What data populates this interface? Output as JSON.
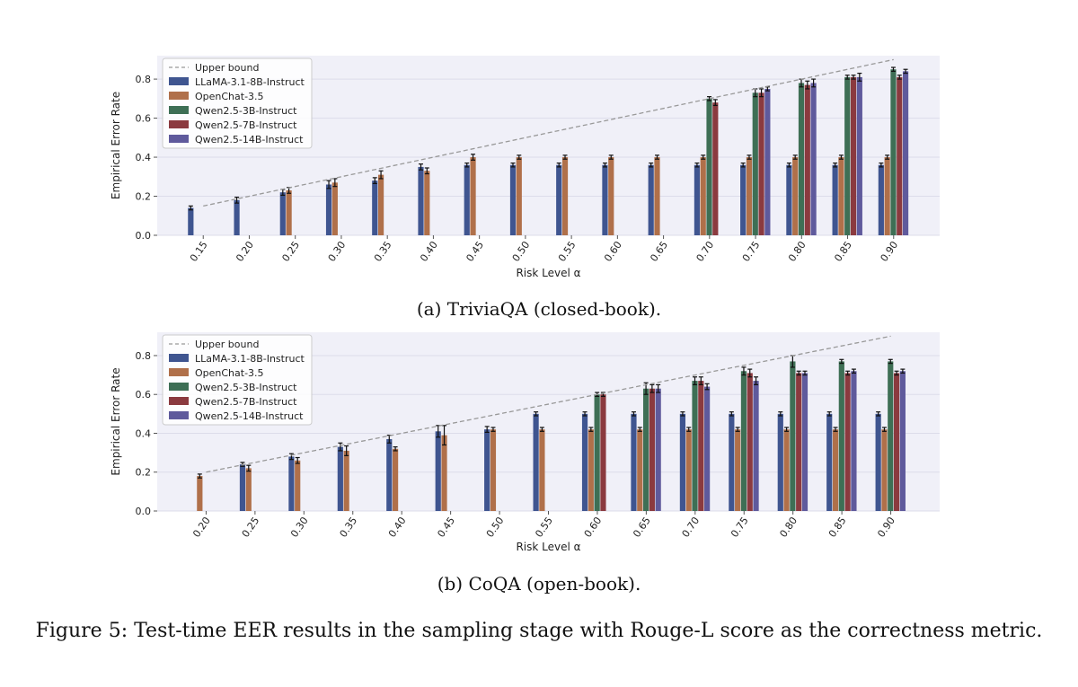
{
  "figure_caption": "Figure 5: Test-time EER results in the sampling stage with Rouge-L score as the correctness metric.",
  "colors": {
    "upper_bound": "#999999",
    "LLaMA-3.1-8B-Instruct": "#3f5590",
    "OpenChat-3.5": "#b0704a",
    "Qwen2.5-3B-Instruct": "#3e6f55",
    "Qwen2.5-7B-Instruct": "#8b3a3f",
    "Qwen2.5-14B-Instruct": "#5f5a9c",
    "plot_bg": "#f0f0f8"
  },
  "chart_data": [
    {
      "id": "a",
      "type": "bar",
      "caption": "(a) TriviaQA (closed-book).",
      "xlabel": "Risk Level α",
      "ylabel": "Empirical Error Rate",
      "ylim": [
        0,
        0.92
      ],
      "yticks": [
        "0.0",
        "0.2",
        "0.4",
        "0.6",
        "0.8"
      ],
      "legend_position": "top-left",
      "grid": true,
      "categories": [
        "0.15",
        "0.20",
        "0.25",
        "0.30",
        "0.35",
        "0.40",
        "0.45",
        "0.50",
        "0.55",
        "0.60",
        "0.65",
        "0.70",
        "0.75",
        "0.80",
        "0.85",
        "0.90"
      ],
      "upper_bound": {
        "name": "Upper bound",
        "x": [
          0.15,
          0.9
        ],
        "y": [
          0.15,
          0.9
        ]
      },
      "series": [
        {
          "name": "LLaMA-3.1-8B-Instruct",
          "values": [
            0.14,
            0.18,
            0.22,
            0.26,
            0.28,
            0.35,
            0.36,
            0.36,
            0.36,
            0.36,
            0.36,
            0.36,
            0.36,
            0.36,
            0.36,
            0.36
          ],
          "errors": [
            0.01,
            0.015,
            0.015,
            0.02,
            0.015,
            0.015,
            0.01,
            0.01,
            0.01,
            0.01,
            0.01,
            0.01,
            0.01,
            0.01,
            0.01,
            0.01
          ]
        },
        {
          "name": "OpenChat-3.5",
          "values": [
            null,
            null,
            0.23,
            0.27,
            0.31,
            0.33,
            0.4,
            0.4,
            0.4,
            0.4,
            0.4,
            0.4,
            0.4,
            0.4,
            0.4,
            0.4
          ],
          "errors": [
            0,
            0,
            0.015,
            0.02,
            0.02,
            0.015,
            0.015,
            0.01,
            0.01,
            0.01,
            0.01,
            0.01,
            0.01,
            0.01,
            0.01,
            0.01
          ]
        },
        {
          "name": "Qwen2.5-3B-Instruct",
          "values": [
            null,
            null,
            null,
            null,
            null,
            null,
            null,
            null,
            null,
            null,
            null,
            0.7,
            0.73,
            0.78,
            0.81,
            0.85
          ],
          "errors": [
            0,
            0,
            0,
            0,
            0,
            0,
            0,
            0,
            0,
            0,
            0,
            0.01,
            0.02,
            0.02,
            0.01,
            0.01
          ]
        },
        {
          "name": "Qwen2.5-7B-Instruct",
          "values": [
            null,
            null,
            null,
            null,
            null,
            null,
            null,
            null,
            null,
            null,
            null,
            0.68,
            0.73,
            0.77,
            0.81,
            0.81
          ],
          "errors": [
            0,
            0,
            0,
            0,
            0,
            0,
            0,
            0,
            0,
            0,
            0,
            0.015,
            0.02,
            0.02,
            0.01,
            0.01
          ]
        },
        {
          "name": "Qwen2.5-14B-Instruct",
          "values": [
            null,
            null,
            null,
            null,
            null,
            null,
            null,
            null,
            null,
            null,
            null,
            null,
            0.75,
            0.78,
            0.81,
            0.84
          ],
          "errors": [
            0,
            0,
            0,
            0,
            0,
            0,
            0,
            0,
            0,
            0,
            0,
            0,
            0.01,
            0.02,
            0.02,
            0.01
          ]
        }
      ]
    },
    {
      "id": "b",
      "type": "bar",
      "caption": "(b) CoQA (open-book).",
      "xlabel": "Risk Level α",
      "ylabel": "Empirical Error Rate",
      "ylim": [
        0,
        0.92
      ],
      "yticks": [
        "0.0",
        "0.2",
        "0.4",
        "0.6",
        "0.8"
      ],
      "legend_position": "top-left",
      "grid": true,
      "categories": [
        "0.20",
        "0.25",
        "0.30",
        "0.35",
        "0.40",
        "0.45",
        "0.50",
        "0.55",
        "0.60",
        "0.65",
        "0.70",
        "0.75",
        "0.80",
        "0.85",
        "0.90"
      ],
      "upper_bound": {
        "name": "Upper bound",
        "x": [
          0.2,
          0.9
        ],
        "y": [
          0.2,
          0.9
        ]
      },
      "series": [
        {
          "name": "LLaMA-3.1-8B-Instruct",
          "values": [
            null,
            0.24,
            0.28,
            0.33,
            0.37,
            0.41,
            0.42,
            0.5,
            0.5,
            0.5,
            0.5,
            0.5,
            0.5,
            0.5,
            0.5
          ],
          "errors": [
            0,
            0.01,
            0.015,
            0.02,
            0.02,
            0.03,
            0.015,
            0.01,
            0.01,
            0.01,
            0.01,
            0.01,
            0.01,
            0.01,
            0.01
          ]
        },
        {
          "name": "OpenChat-3.5",
          "values": [
            0.18,
            0.22,
            0.26,
            0.31,
            0.32,
            0.39,
            0.42,
            0.42,
            0.42,
            0.42,
            0.42,
            0.42,
            0.42,
            0.42,
            0.42
          ],
          "errors": [
            0.01,
            0.015,
            0.015,
            0.025,
            0.01,
            0.05,
            0.01,
            0.01,
            0.01,
            0.01,
            0.01,
            0.01,
            0.01,
            0.01,
            0.01
          ]
        },
        {
          "name": "Qwen2.5-3B-Instruct",
          "values": [
            null,
            null,
            null,
            null,
            null,
            null,
            null,
            null,
            0.6,
            0.63,
            0.67,
            0.72,
            0.77,
            0.77,
            0.77
          ],
          "errors": [
            0,
            0,
            0,
            0,
            0,
            0,
            0,
            0,
            0.01,
            0.03,
            0.02,
            0.02,
            0.03,
            0.01,
            0.01
          ]
        },
        {
          "name": "Qwen2.5-7B-Instruct",
          "values": [
            null,
            null,
            null,
            null,
            null,
            null,
            null,
            null,
            0.6,
            0.63,
            0.67,
            0.71,
            0.71,
            0.71,
            0.71
          ],
          "errors": [
            0,
            0,
            0,
            0,
            0,
            0,
            0,
            0,
            0.01,
            0.02,
            0.02,
            0.02,
            0.01,
            0.01,
            0.01
          ]
        },
        {
          "name": "Qwen2.5-14B-Instruct",
          "values": [
            null,
            null,
            null,
            null,
            null,
            null,
            null,
            null,
            null,
            0.63,
            0.64,
            0.67,
            0.71,
            0.72,
            0.72
          ],
          "errors": [
            0,
            0,
            0,
            0,
            0,
            0,
            0,
            0,
            0,
            0.02,
            0.015,
            0.02,
            0.01,
            0.01,
            0.01
          ]
        }
      ]
    }
  ]
}
